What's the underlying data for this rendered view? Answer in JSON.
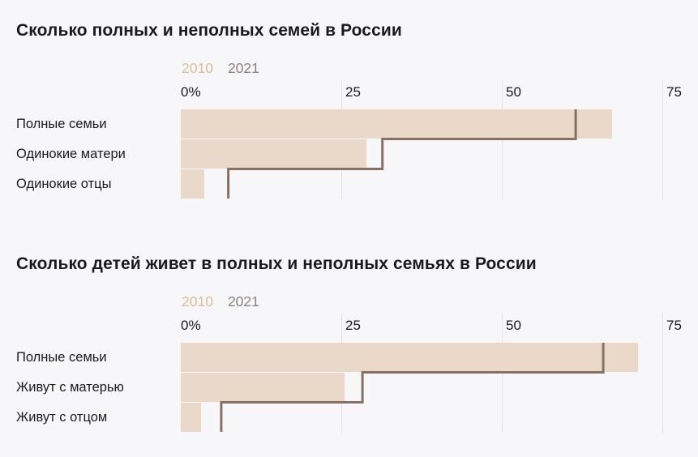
{
  "palette": {
    "background": "#f7f6f9",
    "text": "#1b1b1d",
    "gridline": "#e4e3e8",
    "bar_2010": "#ead8c8",
    "line_2021": "#867164",
    "legend_2010": "#d8bda0",
    "legend_2021": "#8c827a"
  },
  "chart_data": [
    {
      "type": "bar",
      "orientation": "horizontal",
      "title": "Сколько полных и неполных семей в России",
      "categories": [
        "Полные семьи",
        "Одинокие матери",
        "Одинокие отцы"
      ],
      "series": [
        {
          "name": "2010",
          "style": "filled-bar",
          "values": [
            67.2,
            28.9,
            3.7
          ]
        },
        {
          "name": "2021",
          "style": "step-line",
          "values": [
            61.5,
            31.4,
            7.4
          ]
        }
      ],
      "ticks": [
        "0%",
        "25",
        "50",
        "75"
      ],
      "tick_values": [
        0,
        25,
        50,
        75
      ],
      "xlim": [
        0,
        77.5
      ],
      "unit": "%",
      "grid": "vertical",
      "legend_position": "above-plot-left"
    },
    {
      "type": "bar",
      "orientation": "horizontal",
      "title": "Сколько детей живет в полных и неполных семьях в России",
      "categories": [
        "Полные семьи",
        "Живут с матерью",
        "Живут с отцом"
      ],
      "series": [
        {
          "name": "2010",
          "style": "filled-bar",
          "values": [
            71.2,
            25.5,
            3.2
          ]
        },
        {
          "name": "2021",
          "style": "step-line",
          "values": [
            65.8,
            28.3,
            6.3
          ]
        }
      ],
      "ticks": [
        "0%",
        "25",
        "50",
        "75"
      ],
      "tick_values": [
        0,
        25,
        50,
        75
      ],
      "xlim": [
        0,
        77.5
      ],
      "unit": "%",
      "grid": "vertical",
      "legend_position": "above-plot-left"
    }
  ]
}
